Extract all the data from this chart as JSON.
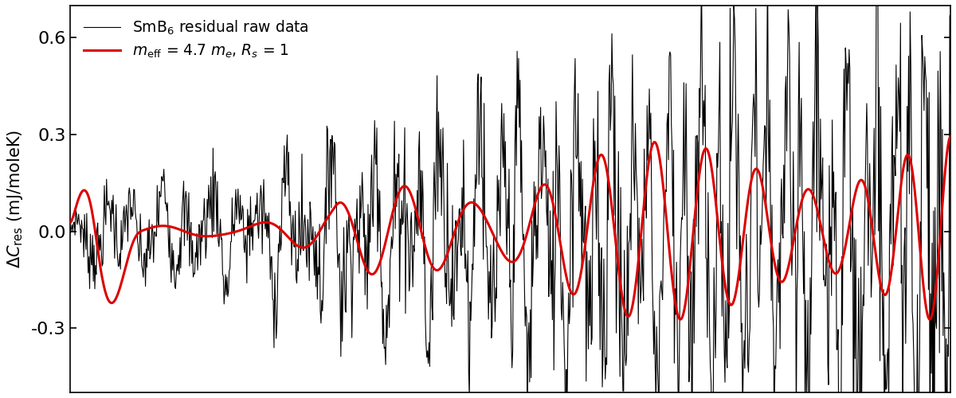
{
  "ylabel": "$\\Delta C_{\\rm res}$ (mJ/moleK)",
  "ylim": [
    -0.5,
    0.7
  ],
  "yticks": [
    -0.3,
    0.0,
    0.3,
    0.6
  ],
  "ytick_labels": [
    "-0.3",
    "0.0",
    "0.3",
    "0.6"
  ],
  "legend_black": "SmB$_6$ residual raw data",
  "legend_red": "$m_{\\rm eff}$ = 4.7 $m_e$, $R_s$ = 1",
  "black_color": "#000000",
  "red_color": "#dd0000",
  "background_color": "#ffffff",
  "figsize": [
    12,
    5
  ],
  "dpi": 100,
  "black_lw": 0.8,
  "red_lw": 2.2
}
